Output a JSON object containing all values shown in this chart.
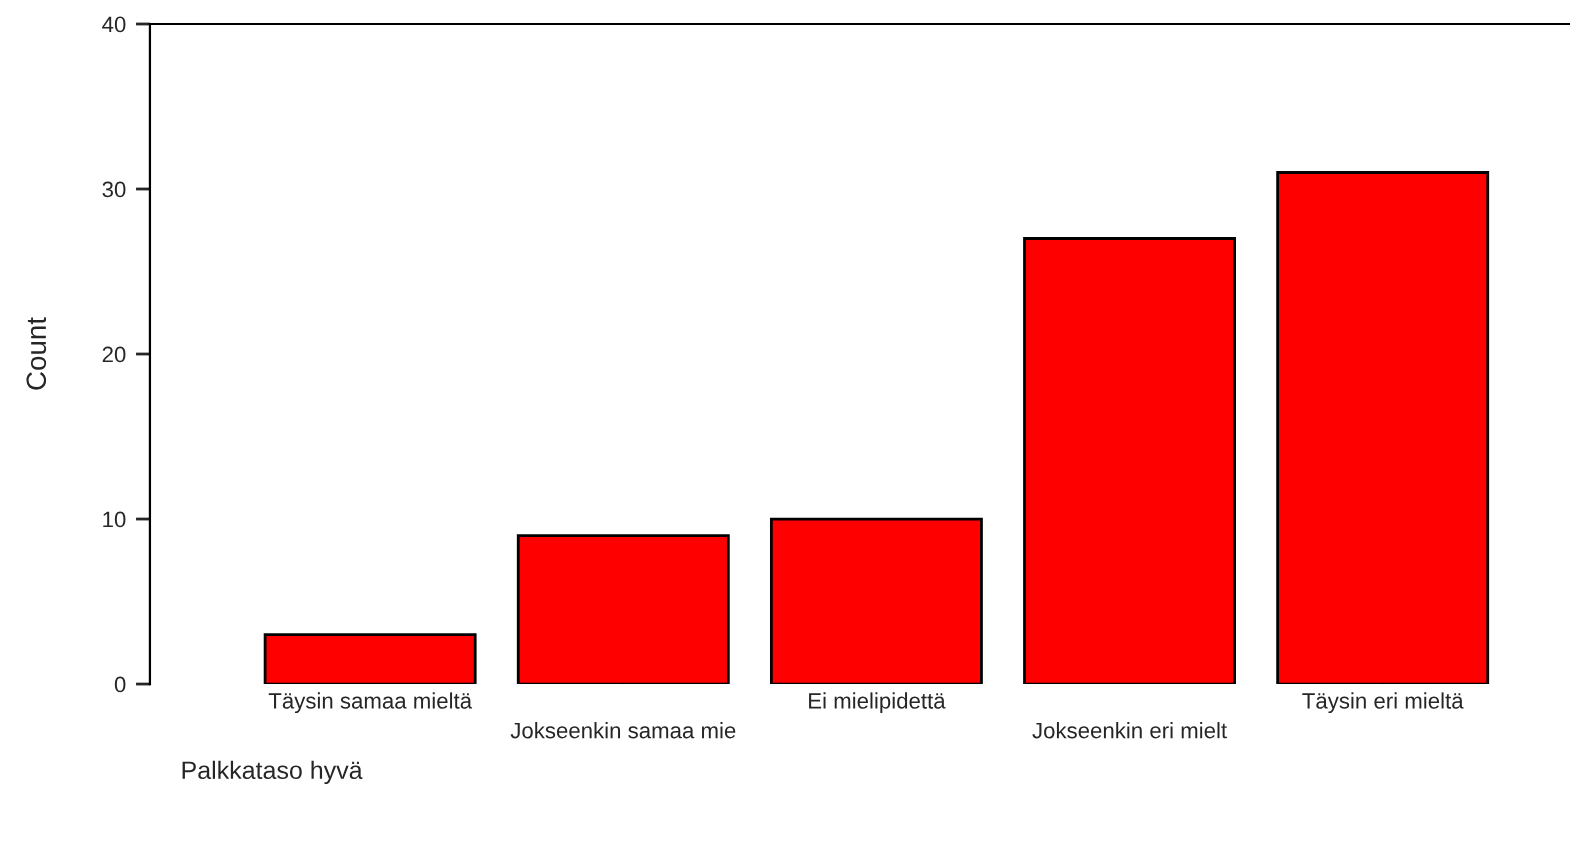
{
  "chart_data": {
    "type": "bar",
    "xlabel": "Palkkataso hyvä",
    "ylabel": "Count",
    "categories": [
      "Täysin samaa mieltä",
      "Jokseenkin samaa mie",
      "Ei mielipidettä",
      "Jokseenkin eri mielt",
      "Täysin eri mieltä"
    ],
    "values": [
      3,
      9,
      10,
      27,
      31
    ],
    "color": "#ff0000",
    "ylim": [
      0,
      40
    ],
    "yticks": [
      0,
      10,
      20,
      30,
      40
    ],
    "grid": false,
    "legend": false
  }
}
